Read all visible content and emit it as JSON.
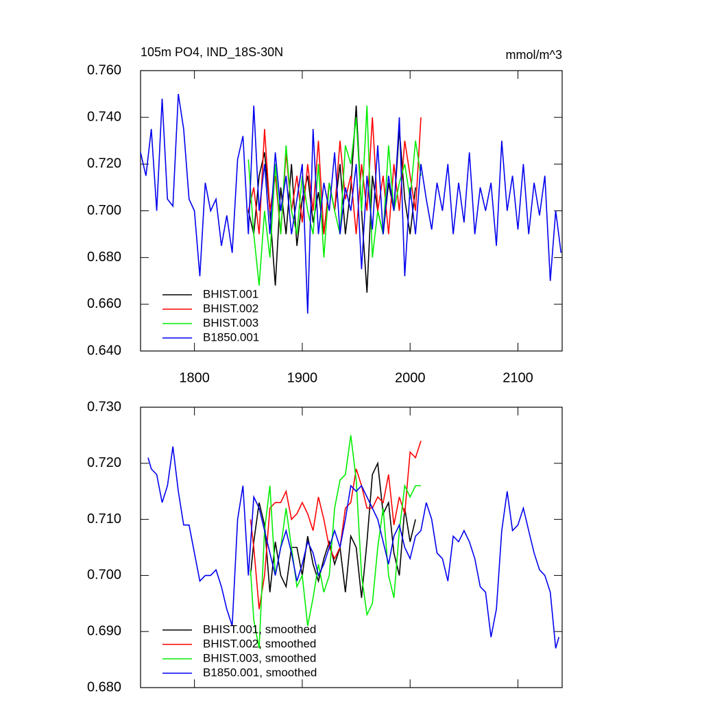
{
  "chart_data": [
    {
      "type": "line",
      "title": "105m PO4, IND_18S-30N",
      "units_label": "mmol/m^3",
      "xlim": [
        1750,
        2141
      ],
      "xticks": [
        1800,
        1900,
        2000,
        2100
      ],
      "xtick_labels": true,
      "ylim": [
        0.64,
        0.76
      ],
      "yticks": [
        {
          "value": 0.64,
          "label": "0.640"
        },
        {
          "value": 0.66,
          "label": "0.660"
        },
        {
          "value": 0.68,
          "label": "0.680"
        },
        {
          "value": 0.7,
          "label": "0.700"
        },
        {
          "value": 0.72,
          "label": "0.720"
        },
        {
          "value": 0.74,
          "label": "0.740"
        },
        {
          "value": 0.76,
          "label": "0.760"
        }
      ],
      "series": [
        {
          "name": "BHIST.001",
          "color": "#000000",
          "x": [
            1850,
            1855,
            1860,
            1865,
            1870,
            1875,
            1880,
            1885,
            1890,
            1895,
            1900,
            1905,
            1910,
            1915,
            1920,
            1925,
            1930,
            1935,
            1940,
            1945,
            1950,
            1955,
            1960,
            1965,
            1970,
            1975,
            1980,
            1985,
            1990,
            1995,
            2000,
            2005
          ],
          "values": [
            0.7,
            0.69,
            0.715,
            0.725,
            0.7,
            0.668,
            0.71,
            0.69,
            0.72,
            0.685,
            0.705,
            0.715,
            0.695,
            0.708,
            0.69,
            0.712,
            0.7,
            0.72,
            0.69,
            0.71,
            0.745,
            0.7,
            0.665,
            0.715,
            0.7,
            0.69,
            0.712,
            0.7,
            0.735,
            0.705,
            0.69,
            0.71
          ]
        },
        {
          "name": "BHIST.002",
          "color": "#ff0000",
          "x": [
            1850,
            1855,
            1860,
            1865,
            1870,
            1875,
            1880,
            1885,
            1890,
            1895,
            1900,
            1905,
            1910,
            1915,
            1920,
            1925,
            1930,
            1935,
            1940,
            1945,
            1950,
            1955,
            1960,
            1965,
            1970,
            1975,
            1980,
            1985,
            1990,
            1995,
            2000,
            2005,
            2010
          ],
          "values": [
            0.7,
            0.71,
            0.69,
            0.735,
            0.7,
            0.715,
            0.69,
            0.725,
            0.7,
            0.715,
            0.695,
            0.72,
            0.7,
            0.73,
            0.69,
            0.712,
            0.7,
            0.73,
            0.705,
            0.715,
            0.69,
            0.72,
            0.7,
            0.74,
            0.7,
            0.715,
            0.69,
            0.72,
            0.7,
            0.73,
            0.715,
            0.7,
            0.74
          ]
        },
        {
          "name": "BHIST.003",
          "color": "#00ee00",
          "x": [
            1850,
            1855,
            1860,
            1865,
            1870,
            1875,
            1880,
            1885,
            1890,
            1895,
            1900,
            1905,
            1910,
            1915,
            1920,
            1925,
            1930,
            1935,
            1940,
            1945,
            1950,
            1955,
            1960,
            1965,
            1970,
            1975,
            1980,
            1985,
            1990,
            1995,
            2000,
            2005,
            2010
          ],
          "values": [
            0.722,
            0.69,
            0.668,
            0.7,
            0.68,
            0.72,
            0.69,
            0.728,
            0.7,
            0.69,
            0.715,
            0.7,
            0.69,
            0.72,
            0.68,
            0.712,
            0.7,
            0.69,
            0.728,
            0.72,
            0.74,
            0.7,
            0.745,
            0.68,
            0.7,
            0.69,
            0.728,
            0.7,
            0.712,
            0.72,
            0.705,
            0.73,
            0.715
          ]
        },
        {
          "name": "B1850.001",
          "color": "#0000ee",
          "x": [
            1750,
            1755,
            1760,
            1765,
            1770,
            1775,
            1780,
            1785,
            1790,
            1795,
            1800,
            1805,
            1810,
            1815,
            1820,
            1825,
            1830,
            1835,
            1840,
            1845,
            1850,
            1855,
            1860,
            1865,
            1870,
            1875,
            1880,
            1885,
            1890,
            1895,
            1900,
            1905,
            1910,
            1915,
            1920,
            1925,
            1930,
            1935,
            1940,
            1945,
            1950,
            1955,
            1960,
            1965,
            1970,
            1975,
            1980,
            1985,
            1990,
            1995,
            2000,
            2005,
            2010,
            2015,
            2020,
            2025,
            2030,
            2035,
            2040,
            2045,
            2050,
            2055,
            2060,
            2065,
            2070,
            2075,
            2080,
            2085,
            2090,
            2095,
            2100,
            2105,
            2110,
            2115,
            2120,
            2125,
            2130,
            2135,
            2140
          ],
          "values": [
            0.725,
            0.715,
            0.735,
            0.7,
            0.748,
            0.705,
            0.702,
            0.75,
            0.735,
            0.705,
            0.7,
            0.672,
            0.712,
            0.7,
            0.705,
            0.685,
            0.698,
            0.682,
            0.722,
            0.732,
            0.69,
            0.745,
            0.7,
            0.72,
            0.69,
            0.725,
            0.7,
            0.715,
            0.69,
            0.705,
            0.72,
            0.656,
            0.735,
            0.69,
            0.712,
            0.7,
            0.725,
            0.69,
            0.71,
            0.7,
            0.72,
            0.675,
            0.715,
            0.692,
            0.728,
            0.69,
            0.715,
            0.7,
            0.74,
            0.672,
            0.71,
            0.69,
            0.72,
            0.705,
            0.692,
            0.712,
            0.7,
            0.72,
            0.69,
            0.712,
            0.695,
            0.725,
            0.69,
            0.71,
            0.7,
            0.712,
            0.685,
            0.73,
            0.7,
            0.715,
            0.692,
            0.72,
            0.69,
            0.712,
            0.698,
            0.715,
            0.67,
            0.7,
            0.682
          ]
        }
      ]
    },
    {
      "type": "line",
      "xlim": [
        1750,
        2141
      ],
      "xticks": [
        1800,
        1900,
        2000,
        2100
      ],
      "xtick_labels": false,
      "ylim": [
        0.68,
        0.73
      ],
      "yticks": [
        {
          "value": 0.68,
          "label": "0.680"
        },
        {
          "value": 0.69,
          "label": "0.690"
        },
        {
          "value": 0.7,
          "label": "0.700"
        },
        {
          "value": 0.71,
          "label": "0.710"
        },
        {
          "value": 0.72,
          "label": "0.720"
        },
        {
          "value": 0.73,
          "label": "0.730"
        }
      ],
      "series": [
        {
          "name": "BHIST.001, smoothed",
          "color": "#000000",
          "x": [
            1852,
            1855,
            1860,
            1865,
            1870,
            1875,
            1880,
            1885,
            1890,
            1895,
            1900,
            1905,
            1910,
            1915,
            1920,
            1925,
            1930,
            1935,
            1940,
            1945,
            1950,
            1955,
            1960,
            1965,
            1970,
            1975,
            1980,
            1985,
            1990,
            1995,
            2000,
            2005
          ],
          "values": [
            0.7,
            0.706,
            0.713,
            0.709,
            0.697,
            0.706,
            0.7,
            0.698,
            0.705,
            0.705,
            0.7,
            0.707,
            0.702,
            0.699,
            0.703,
            0.706,
            0.702,
            0.705,
            0.697,
            0.707,
            0.705,
            0.696,
            0.706,
            0.718,
            0.72,
            0.711,
            0.713,
            0.704,
            0.7,
            0.712,
            0.706,
            0.71
          ]
        },
        {
          "name": "BHIST.002, smoothed",
          "color": "#ff0000",
          "x": [
            1852,
            1855,
            1860,
            1865,
            1870,
            1875,
            1880,
            1885,
            1890,
            1895,
            1900,
            1905,
            1910,
            1915,
            1920,
            1925,
            1930,
            1935,
            1940,
            1945,
            1950,
            1955,
            1960,
            1965,
            1970,
            1975,
            1980,
            1985,
            1990,
            1995,
            2000,
            2005,
            2010
          ],
          "values": [
            0.71,
            0.705,
            0.694,
            0.7,
            0.712,
            0.713,
            0.713,
            0.715,
            0.71,
            0.711,
            0.713,
            0.711,
            0.708,
            0.714,
            0.71,
            0.705,
            0.703,
            0.705,
            0.712,
            0.713,
            0.719,
            0.716,
            0.712,
            0.712,
            0.714,
            0.713,
            0.718,
            0.709,
            0.714,
            0.711,
            0.722,
            0.721,
            0.724
          ]
        },
        {
          "name": "BHIST.003, smoothed",
          "color": "#00ee00",
          "x": [
            1852,
            1855,
            1860,
            1865,
            1870,
            1875,
            1880,
            1885,
            1890,
            1895,
            1900,
            1905,
            1910,
            1915,
            1920,
            1925,
            1930,
            1935,
            1940,
            1945,
            1950,
            1955,
            1960,
            1965,
            1970,
            1975,
            1980,
            1985,
            1990,
            1995,
            2000,
            2005,
            2010
          ],
          "values": [
            0.701,
            0.692,
            0.687,
            0.708,
            0.716,
            0.7,
            0.705,
            0.712,
            0.705,
            0.698,
            0.7,
            0.691,
            0.696,
            0.702,
            0.697,
            0.7,
            0.712,
            0.717,
            0.718,
            0.725,
            0.717,
            0.7,
            0.693,
            0.695,
            0.705,
            0.712,
            0.7,
            0.696,
            0.708,
            0.716,
            0.714,
            0.716,
            0.716
          ]
        },
        {
          "name": "B1850.001, smoothed",
          "color": "#0000ee",
          "x": [
            1757,
            1760,
            1765,
            1770,
            1775,
            1780,
            1785,
            1790,
            1795,
            1800,
            1805,
            1810,
            1815,
            1820,
            1825,
            1830,
            1835,
            1840,
            1845,
            1850,
            1855,
            1860,
            1865,
            1870,
            1875,
            1880,
            1885,
            1890,
            1895,
            1900,
            1905,
            1910,
            1915,
            1920,
            1925,
            1930,
            1935,
            1940,
            1945,
            1950,
            1955,
            1960,
            1965,
            1970,
            1975,
            1980,
            1985,
            1990,
            1995,
            2000,
            2005,
            2010,
            2015,
            2020,
            2025,
            2030,
            2035,
            2040,
            2045,
            2050,
            2055,
            2060,
            2065,
            2070,
            2075,
            2080,
            2085,
            2090,
            2095,
            2100,
            2105,
            2110,
            2115,
            2120,
            2125,
            2130,
            2135,
            2138
          ],
          "values": [
            0.721,
            0.719,
            0.718,
            0.713,
            0.716,
            0.723,
            0.715,
            0.709,
            0.709,
            0.704,
            0.699,
            0.7,
            0.7,
            0.701,
            0.698,
            0.694,
            0.691,
            0.71,
            0.716,
            0.7,
            0.714,
            0.712,
            0.708,
            0.704,
            0.7,
            0.705,
            0.708,
            0.704,
            0.699,
            0.702,
            0.706,
            0.704,
            0.7,
            0.702,
            0.705,
            0.708,
            0.705,
            0.71,
            0.716,
            0.715,
            0.716,
            0.714,
            0.712,
            0.71,
            0.706,
            0.702,
            0.707,
            0.709,
            0.705,
            0.703,
            0.707,
            0.708,
            0.713,
            0.71,
            0.704,
            0.703,
            0.699,
            0.707,
            0.706,
            0.708,
            0.706,
            0.703,
            0.698,
            0.697,
            0.689,
            0.694,
            0.708,
            0.715,
            0.708,
            0.709,
            0.712,
            0.708,
            0.704,
            0.701,
            0.7,
            0.697,
            0.687,
            0.689
          ]
        }
      ]
    }
  ]
}
